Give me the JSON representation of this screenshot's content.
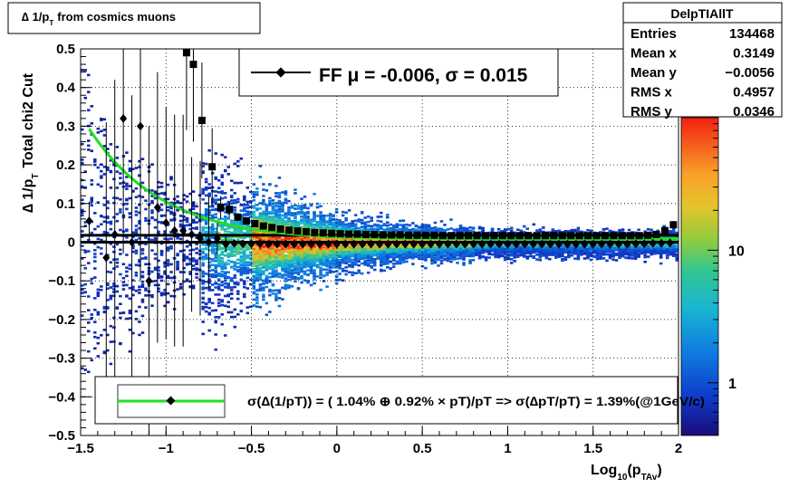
{
  "title_box": {
    "text_main": "∆ 1/p",
    "text_sub": "T",
    "text_rest": "from cosmics muons"
  },
  "stats": {
    "name": "DelpTIAllT",
    "rows": [
      {
        "label": "Entries",
        "value": "134468"
      },
      {
        "label": "Mean x",
        "value": "0.3149"
      },
      {
        "label": "Mean y",
        "value": "−0.0056"
      },
      {
        "label": "RMS x",
        "value": "0.4957"
      },
      {
        "label": "RMS y",
        "value": "0.0346"
      }
    ]
  },
  "fit_legend": {
    "text": "FF μ = -0.006, σ =   0.015"
  },
  "res_legend": {
    "text": "σ(∆(1/pT)) = ( 1.04% ⊕  0.92% × pT)/pT => σ(∆pT/pT) =  1.39%(@1GeV/c)"
  },
  "colors": {
    "fit_curve": "#22dd22",
    "markers": "#000000"
  },
  "chart_data": {
    "type": "heatmap",
    "xlabel": {
      "main": "Log",
      "sub": "10",
      "paren": "(p",
      "sub2": "TAv",
      "close": ")"
    },
    "ylabel": {
      "main": "∆ 1/p",
      "sub": "T",
      "rest": "Total chi2 Cut"
    },
    "xlim": [
      -1.5,
      2.0
    ],
    "ylim": [
      -0.5,
      0.5
    ],
    "x_ticks": [
      -1.5,
      -1,
      -0.5,
      0,
      0.5,
      1,
      1.5,
      2
    ],
    "x_tick_labels": [
      "−1.5",
      "−1",
      "−0.5",
      "0",
      "0.5",
      "1",
      "1.5",
      "2"
    ],
    "y_ticks": [
      -0.5,
      -0.4,
      -0.3,
      -0.2,
      -0.1,
      0,
      0.1,
      0.2,
      0.3,
      0.4,
      0.5
    ],
    "y_tick_labels": [
      "−0.5",
      "−0.4",
      "−0.3",
      "−0.2",
      "−0.1",
      "0",
      "0.1",
      "0.2",
      "0.3",
      "0.4",
      "0.5"
    ],
    "colorbar": {
      "scale": "log",
      "tick_values": [
        1,
        10
      ],
      "tick_labels": [
        "1",
        "10"
      ],
      "range": [
        0.4,
        100
      ]
    },
    "grid": true,
    "mean_points": {
      "x": [
        -1.45,
        -1.35,
        -1.3,
        -1.25,
        -1.2,
        -1.15,
        -1.1,
        -1.05,
        -1.0,
        -0.95,
        -0.9,
        -0.85,
        -0.8,
        -0.75,
        -0.7,
        -0.65,
        -0.6,
        -0.55,
        -0.5,
        -0.45,
        -0.4,
        -0.35,
        -0.3,
        -0.25,
        -0.2,
        -0.15,
        -0.1,
        -0.05,
        0.0,
        0.05,
        0.1,
        0.15,
        0.2,
        0.25,
        0.3,
        0.35,
        0.4,
        0.45,
        0.5,
        0.55,
        0.6,
        0.65,
        0.7,
        0.75,
        0.8,
        0.85,
        0.9,
        0.95,
        1.0,
        1.05,
        1.1,
        1.15,
        1.2,
        1.25,
        1.3,
        1.35,
        1.4,
        1.45,
        1.5,
        1.55,
        1.6,
        1.65,
        1.7,
        1.75,
        1.8,
        1.85,
        1.9,
        1.95
      ],
      "y": [
        0.055,
        -0.04,
        0.02,
        0.32,
        0.0,
        0.3,
        -0.1,
        0.09,
        0.05,
        0.03,
        0.03,
        0.02,
        0.01,
        0.0,
        0.01,
        -0.005,
        -0.003,
        -0.004,
        -0.004,
        -0.004,
        -0.005,
        -0.005,
        -0.005,
        -0.005,
        -0.005,
        -0.005,
        -0.005,
        -0.005,
        -0.005,
        -0.005,
        -0.005,
        -0.005,
        -0.005,
        -0.005,
        -0.005,
        -0.005,
        -0.005,
        -0.005,
        -0.005,
        -0.005,
        -0.005,
        -0.005,
        -0.005,
        -0.005,
        -0.005,
        -0.005,
        -0.005,
        -0.005,
        -0.005,
        -0.005,
        -0.005,
        -0.005,
        -0.005,
        -0.005,
        -0.005,
        -0.005,
        -0.005,
        -0.005,
        -0.005,
        -0.005,
        -0.005,
        -0.005,
        -0.005,
        -0.004,
        -0.004,
        -0.003,
        -0.003,
        -0.002
      ],
      "err": [
        0.05,
        0.35,
        0.4,
        0.35,
        0.38,
        0.4,
        0.4,
        0.35,
        0.3,
        0.3,
        0.3,
        0.2,
        0.2,
        0.12,
        0.04,
        0.02,
        0.01,
        0.01,
        0.005,
        0.005,
        0.004,
        0.004,
        0.004,
        0.004,
        0.004,
        0.004,
        0.004,
        0.004,
        0.004,
        0.004,
        0.004,
        0.004,
        0.004,
        0.004,
        0.004,
        0.004,
        0.004,
        0.004,
        0.004,
        0.004,
        0.004,
        0.004,
        0.004,
        0.004,
        0.004,
        0.004,
        0.004,
        0.004,
        0.004,
        0.004,
        0.004,
        0.004,
        0.004,
        0.004,
        0.004,
        0.004,
        0.004,
        0.004,
        0.004,
        0.004,
        0.004,
        0.004,
        0.004,
        0.004,
        0.004,
        0.004,
        0.004,
        0.004
      ]
    },
    "sigma_points": {
      "x": [
        -0.88,
        -0.84,
        -0.79,
        -0.73,
        -0.68,
        -0.63,
        -0.58,
        -0.53,
        -0.48,
        -0.43,
        -0.38,
        -0.33,
        -0.28,
        -0.23,
        -0.18,
        -0.13,
        -0.08,
        -0.03,
        0.02,
        0.07,
        0.12,
        0.17,
        0.22,
        0.27,
        0.32,
        0.37,
        0.42,
        0.47,
        0.52,
        0.57,
        0.62,
        0.67,
        0.72,
        0.77,
        0.82,
        0.87,
        0.92,
        0.97,
        1.02,
        1.07,
        1.12,
        1.17,
        1.22,
        1.27,
        1.32,
        1.37,
        1.42,
        1.47,
        1.52,
        1.57,
        1.62,
        1.67,
        1.72,
        1.77,
        1.82,
        1.87,
        1.92,
        1.97
      ],
      "y": [
        0.49,
        0.46,
        0.315,
        0.195,
        0.09,
        0.085,
        0.065,
        0.055,
        0.048,
        0.042,
        0.038,
        0.034,
        0.031,
        0.029,
        0.027,
        0.025,
        0.024,
        0.023,
        0.022,
        0.021,
        0.021,
        0.02,
        0.02,
        0.019,
        0.019,
        0.019,
        0.018,
        0.018,
        0.018,
        0.018,
        0.017,
        0.017,
        0.017,
        0.017,
        0.017,
        0.017,
        0.017,
        0.017,
        0.017,
        0.017,
        0.017,
        0.017,
        0.017,
        0.017,
        0.017,
        0.017,
        0.017,
        0.017,
        0.017,
        0.017,
        0.017,
        0.017,
        0.017,
        0.017,
        0.018,
        0.02,
        0.03,
        0.045
      ],
      "err": [
        0.2,
        0.2,
        0.15,
        0.1,
        0.03,
        0.02,
        0.01,
        0.008,
        0.005,
        0.004,
        0.003,
        0.003,
        0.003,
        0.003,
        0.003,
        0.003,
        0.003,
        0.003,
        0.003,
        0.003,
        0.003,
        0.003,
        0.003,
        0.003,
        0.003,
        0.003,
        0.003,
        0.003,
        0.003,
        0.003,
        0.003,
        0.003,
        0.003,
        0.003,
        0.003,
        0.003,
        0.003,
        0.003,
        0.003,
        0.003,
        0.003,
        0.003,
        0.003,
        0.003,
        0.003,
        0.003,
        0.003,
        0.003,
        0.003,
        0.003,
        0.003,
        0.003,
        0.003,
        0.003,
        0.003,
        0.004,
        0.006,
        0.01
      ]
    },
    "resolution_fit": {
      "a_percent": 1.04,
      "b_percent": 0.92,
      "x_range": [
        -1.45,
        2.0
      ]
    },
    "mean_fit_lines": [
      {
        "y": 0.018
      },
      {
        "y": 0.0
      }
    ]
  }
}
